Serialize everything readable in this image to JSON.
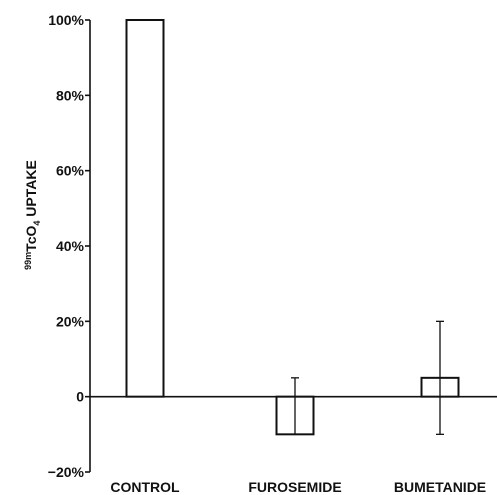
{
  "chart_data": {
    "type": "bar",
    "title": "",
    "xlabel": "",
    "ylabel": {
      "isotope": "99m",
      "compound": "TcO",
      "subscript": "4",
      "rest": " UPTAKE"
    },
    "categories": [
      "CONTROL",
      "FUROSEMIDE",
      "BUMETANIDE"
    ],
    "values": [
      100,
      -10,
      5
    ],
    "error_bars": [
      null,
      [
        -10,
        5
      ],
      [
        -10,
        20
      ]
    ],
    "ylim": [
      -20,
      100
    ],
    "yticks": [
      {
        "value": -20,
        "label": "−20%"
      },
      {
        "value": 0,
        "label": "0"
      },
      {
        "value": 20,
        "label": "20%"
      },
      {
        "value": 40,
        "label": "40%"
      },
      {
        "value": 60,
        "label": "60%"
      },
      {
        "value": 80,
        "label": "80%"
      },
      {
        "value": 100,
        "label": "100%"
      }
    ],
    "grid": false,
    "colors": {
      "bar_fill": "#ffffff",
      "bar_stroke": "#111111"
    }
  }
}
